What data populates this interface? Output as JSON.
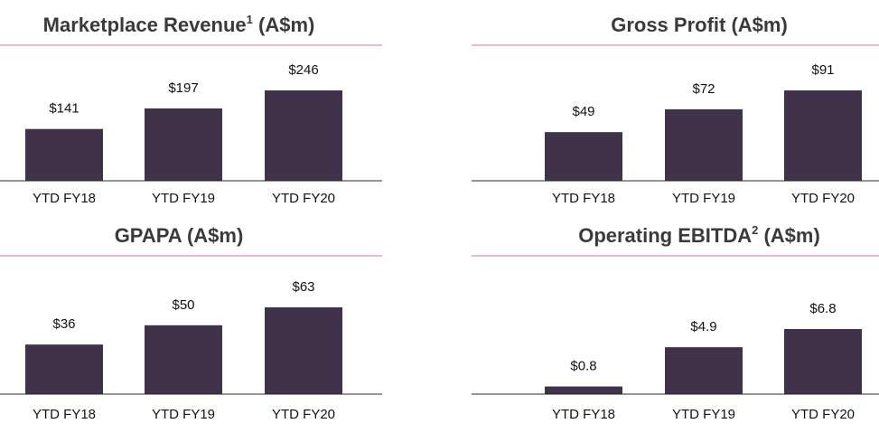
{
  "colors": {
    "bar": "#3f3249",
    "title_rule": "#e8a3b0",
    "text": "#111111",
    "title_text": "#3a3a3a",
    "axis": "#2a2a2a"
  },
  "chart_data": [
    {
      "type": "bar",
      "title": "Marketplace Revenue",
      "title_superscript": "1",
      "title_suffix": " (A$m)",
      "categories": [
        "YTD FY18",
        "YTD FY19",
        "YTD FY20"
      ],
      "values": [
        141,
        197,
        246
      ],
      "value_labels": [
        "$141",
        "$197",
        "$246"
      ],
      "xlabel": "",
      "ylabel": "",
      "ylim": [
        0,
        246
      ],
      "grid": false
    },
    {
      "type": "bar",
      "title": "Gross Profit",
      "title_superscript": "",
      "title_suffix": " (A$m)",
      "categories": [
        "YTD FY18",
        "YTD FY19",
        "YTD FY20"
      ],
      "values": [
        49,
        72,
        91
      ],
      "value_labels": [
        "$49",
        "$72",
        "$91"
      ],
      "xlabel": "",
      "ylabel": "",
      "ylim": [
        0,
        91
      ],
      "grid": false
    },
    {
      "type": "bar",
      "title": "GPAPA",
      "title_superscript": "",
      "title_suffix": " (A$m)",
      "categories": [
        "YTD FY18",
        "YTD FY19",
        "YTD FY20"
      ],
      "values": [
        36,
        50,
        63
      ],
      "value_labels": [
        "$36",
        "$50",
        "$63"
      ],
      "xlabel": "",
      "ylabel": "",
      "ylim": [
        0,
        63
      ],
      "grid": false
    },
    {
      "type": "bar",
      "title": "Operating EBITDA",
      "title_superscript": "2",
      "title_suffix": " (A$m)",
      "categories": [
        "YTD FY18",
        "YTD FY19",
        "YTD FY20"
      ],
      "values": [
        0.8,
        4.9,
        6.8
      ],
      "value_labels": [
        "$0.8",
        "$4.9",
        "$6.8"
      ],
      "xlabel": "",
      "ylabel": "",
      "ylim": [
        0,
        6.8
      ],
      "grid": false
    }
  ]
}
